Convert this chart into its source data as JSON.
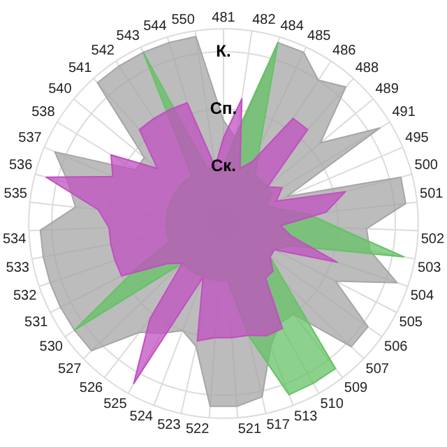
{
  "chart_data": {
    "type": "radar",
    "categories": [
      "481",
      "482",
      "484",
      "485",
      "486",
      "488",
      "489",
      "491",
      "495",
      "500",
      "501",
      "502",
      "503",
      "504",
      "505",
      "506",
      "507",
      "509",
      "510",
      "513",
      "517",
      "521",
      "522",
      "523",
      "524",
      "525",
      "526",
      "527",
      "530",
      "531",
      "532",
      "533",
      "534",
      "535",
      "536",
      "537",
      "538",
      "540",
      "541",
      "542",
      "543",
      "544",
      "550"
    ],
    "series": [
      {
        "color": "#a6a6a6",
        "values": [
          1.8,
          1.5,
          3.3,
          3.3,
          3.0,
          3.2,
          2.2,
          3.2,
          1.2,
          3.2,
          3.2,
          2.5,
          2.6,
          3.2,
          2.2,
          3.1,
          3.1,
          2.0,
          2.0,
          2.3,
          3.1,
          3.2,
          3.2,
          2.2,
          2.0,
          2.2,
          2.4,
          3.2,
          3.2,
          3.2,
          3.2,
          3.2,
          3.2,
          2.6,
          2.8,
          3.2,
          1.8,
          1.8,
          3.3,
          3.3,
          3.3,
          3.3,
          3.3
        ]
      },
      {
        "color": "#66c266",
        "values": [
          1.0,
          1.6,
          3.3,
          1.5,
          1.0,
          1.0,
          1.0,
          1.0,
          0.8,
          1.0,
          1.5,
          2.0,
          3.2,
          1.2,
          1.0,
          1.0,
          1.5,
          3.2,
          3.2,
          3.2,
          2.0,
          1.0,
          1.0,
          1.0,
          1.0,
          1.0,
          1.0,
          1.0,
          3.2,
          1.7,
          1.0,
          1.0,
          1.0,
          1.0,
          1.0,
          1.0,
          1.0,
          1.0,
          1.0,
          1.0,
          3.3,
          1.0,
          1.0
        ]
      },
      {
        "color": "#c050c0",
        "values": [
          1.5,
          2.2,
          1.0,
          1.2,
          2.2,
          2.2,
          1.0,
          1.2,
          1.0,
          2.2,
          1.8,
          1.0,
          1.2,
          2.1,
          1.0,
          1.0,
          1.2,
          1.2,
          2.1,
          2.1,
          2.0,
          2.0,
          2.0,
          2.1,
          1.0,
          3.2,
          2.1,
          1.0,
          1.2,
          2.0,
          2.0,
          2.0,
          2.0,
          2.2,
          3.2,
          2.1,
          2.3,
          1.5,
          2.2,
          2.2,
          2.2,
          2.2,
          1.0
        ]
      }
    ],
    "ylim": [
      0,
      3.4
    ],
    "yticks": [
      {
        "value": 1,
        "label": "Ск."
      },
      {
        "value": 2,
        "label": "Сп."
      },
      {
        "value": 3,
        "label": "К."
      }
    ],
    "grid": true,
    "legend": false
  }
}
